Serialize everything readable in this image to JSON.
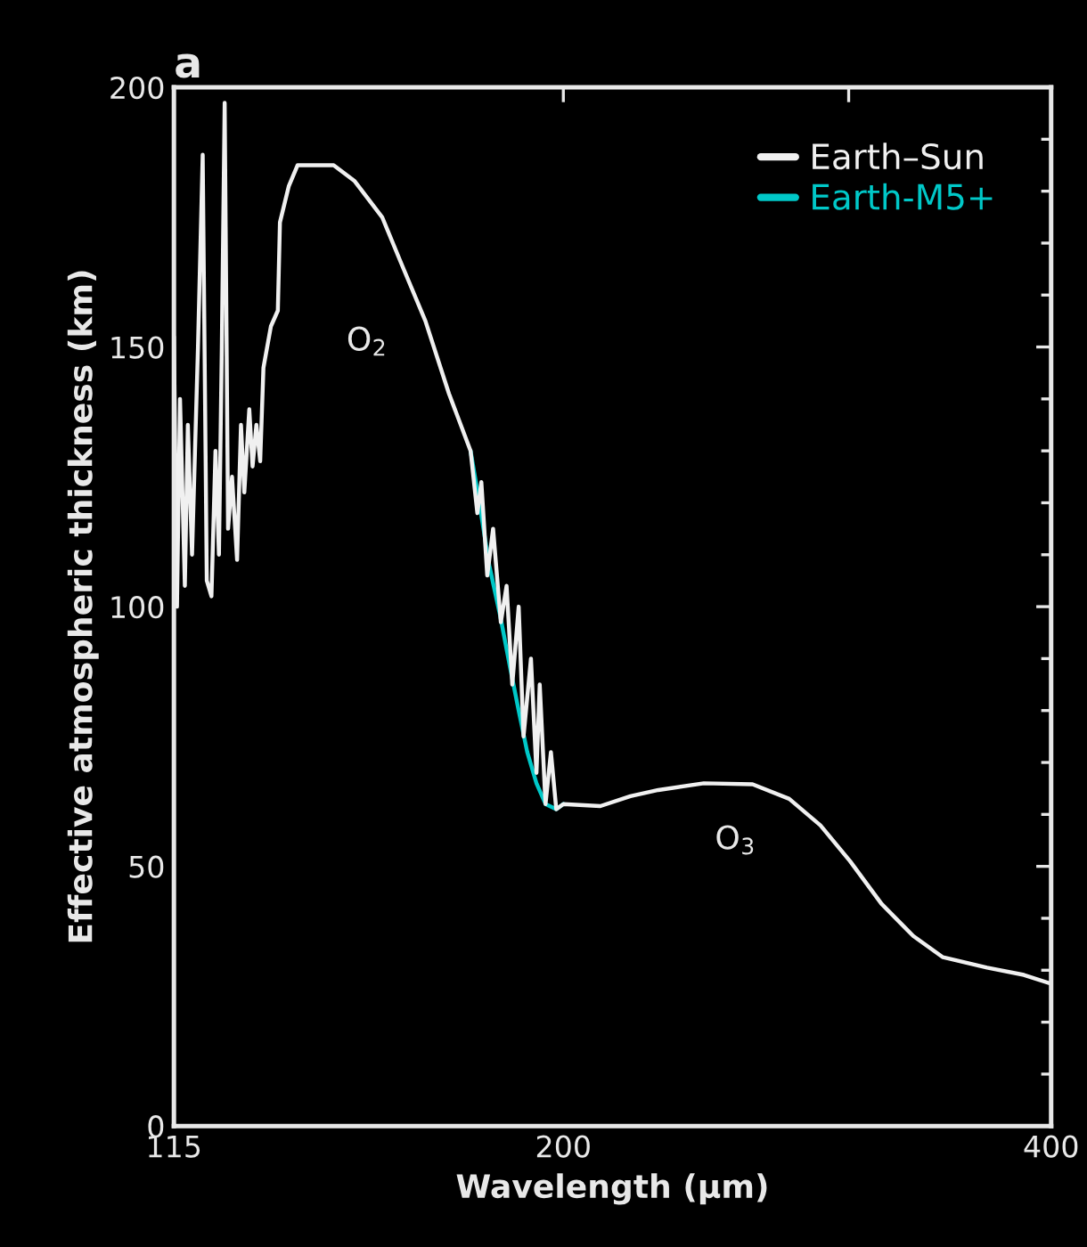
{
  "chart_data": {
    "type": "line",
    "title": "a",
    "xlabel": "Wavelength (μm)",
    "ylabel": "Effective atmospheric thickness (km)",
    "log": "x",
    "x": [
      115,
      115.5,
      116,
      116.8,
      117.3,
      118,
      119,
      119.8,
      120.5,
      121.3,
      122,
      122.6,
      123.1,
      123.6,
      124.2,
      124.9,
      125.8,
      126.5,
      127.1,
      128,
      128.6,
      129.3,
      130,
      130.6,
      132,
      133.3,
      133.7,
      135.4,
      137.1,
      144.3,
      148.6,
      154.6,
      158.9,
      164.4,
      170,
      175.3,
      177,
      178,
      179.5,
      181,
      183,
      184.5,
      186,
      187.7,
      189,
      191,
      192.5,
      193.4,
      195,
      196.5,
      198,
      200,
      210.8,
      220,
      228.9,
      244.2,
      261.7,
      275.7,
      288.2,
      300.6,
      314.3,
      328.8,
      343,
      365.2,
      384.8,
      400
    ],
    "series": [
      {
        "name": "Earth–Sun",
        "color": "#f0f0f0",
        "values": [
          152,
          100,
          140,
          104,
          135,
          110,
          150,
          187,
          105,
          102,
          130,
          110,
          150,
          197,
          115,
          125,
          109,
          135,
          122,
          138,
          127,
          135,
          128,
          146,
          154,
          157,
          174,
          181,
          185,
          185,
          182,
          175,
          166,
          155,
          141,
          130,
          118,
          124,
          106,
          115,
          97,
          104,
          85,
          100,
          75,
          90,
          68,
          85,
          62,
          72,
          61,
          62,
          61.6,
          63.5,
          64.7,
          66,
          65.8,
          63,
          57.9,
          51,
          42.8,
          36.6,
          32.5,
          30.5,
          29.1,
          27.4
        ]
      },
      {
        "name": "Earth-M5+",
        "color": "#00c8c8",
        "x": [
          175.3,
          177.5,
          180,
          182.9,
          185.5,
          187.7,
          190,
          192.5,
          195,
          198,
          200
        ],
        "values": [
          130,
          120,
          108,
          98,
          88,
          80,
          72,
          66,
          62,
          61,
          62
        ]
      }
    ],
    "xlim": [
      115,
      400
    ],
    "xticks": [
      115,
      200,
      {
        "value": 300,
        "label": null
      },
      400
    ],
    "ylim": [
      0,
      200
    ],
    "yticks": [
      0,
      {
        "value": 10,
        "label": null
      },
      {
        "value": 20,
        "label": null
      },
      {
        "value": 30,
        "label": null
      },
      {
        "value": 40,
        "label": null
      },
      50,
      {
        "value": 60,
        "label": null
      },
      {
        "value": 70,
        "label": null
      },
      {
        "value": 80,
        "label": null
      },
      {
        "value": 90,
        "label": null
      },
      100,
      {
        "value": 110,
        "label": null
      },
      {
        "value": 120,
        "label": null
      },
      {
        "value": 130,
        "label": null
      },
      {
        "value": 140,
        "label": null
      },
      150,
      {
        "value": 160,
        "label": null
      },
      {
        "value": 170,
        "label": null
      },
      {
        "value": 180,
        "label": null
      },
      {
        "value": 190,
        "label": null
      },
      200
    ],
    "annotations": [
      "O$_{2}$",
      "O$_{3}$"
    ],
    "grid": false,
    "legend": "top right",
    "marker": "none",
    "line_style": "solid"
  }
}
